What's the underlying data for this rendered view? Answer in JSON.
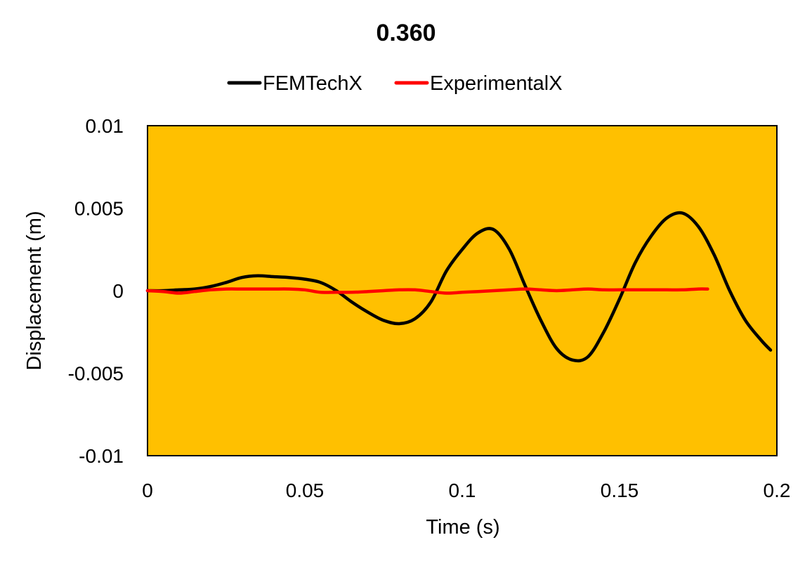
{
  "chart_data": {
    "type": "line",
    "title": "0.360",
    "xlabel": "Time (s)",
    "ylabel": "Displacement (m)",
    "xlim": [
      0,
      0.2
    ],
    "ylim": [
      -0.01,
      0.01
    ],
    "x_ticks": [
      "0",
      "0.05",
      "0.1",
      "0.15",
      "0.2"
    ],
    "y_ticks": [
      "0.01",
      "0.005",
      "0",
      "-0.005",
      "-0.01"
    ],
    "x_tick_values": [
      0,
      0.05,
      0.1,
      0.15,
      0.2
    ],
    "y_tick_values": [
      0.01,
      0.005,
      0,
      -0.005,
      -0.01
    ],
    "grid": false,
    "legend_position": "top",
    "plot_background": "#FFC000",
    "series": [
      {
        "name": "FEMTechX",
        "color": "#000000",
        "points": [
          [
            0,
            0
          ],
          [
            0.005,
            0
          ],
          [
            0.01,
            5e-05
          ],
          [
            0.015,
            0.0001
          ],
          [
            0.02,
            0.00025
          ],
          [
            0.025,
            0.0005
          ],
          [
            0.03,
            0.0008
          ],
          [
            0.035,
            0.0009
          ],
          [
            0.04,
            0.00085
          ],
          [
            0.045,
            0.0008
          ],
          [
            0.05,
            0.0007
          ],
          [
            0.055,
            0.0005
          ],
          [
            0.06,
            0
          ],
          [
            0.065,
            -0.0007
          ],
          [
            0.07,
            -0.0013
          ],
          [
            0.075,
            -0.0018
          ],
          [
            0.08,
            -0.002
          ],
          [
            0.085,
            -0.0017
          ],
          [
            0.09,
            -0.0007
          ],
          [
            0.095,
            0.0012
          ],
          [
            0.1,
            0.0025
          ],
          [
            0.105,
            0.0035
          ],
          [
            0.11,
            0.0037
          ],
          [
            0.115,
            0.0025
          ],
          [
            0.12,
            0.0003
          ],
          [
            0.125,
            -0.0018
          ],
          [
            0.13,
            -0.0035
          ],
          [
            0.135,
            -0.0042
          ],
          [
            0.14,
            -0.004
          ],
          [
            0.145,
            -0.0025
          ],
          [
            0.15,
            -0.0005
          ],
          [
            0.155,
            0.0017
          ],
          [
            0.16,
            0.0033
          ],
          [
            0.165,
            0.0044
          ],
          [
            0.17,
            0.0047
          ],
          [
            0.175,
            0.0039
          ],
          [
            0.18,
            0.0022
          ],
          [
            0.185,
            0
          ],
          [
            0.19,
            -0.0018
          ],
          [
            0.195,
            -0.003
          ],
          [
            0.198,
            -0.0036
          ]
        ]
      },
      {
        "name": "ExperimentalX",
        "color": "#FF0000",
        "points": [
          [
            0,
            0
          ],
          [
            0.005,
            -5e-05
          ],
          [
            0.01,
            -0.00015
          ],
          [
            0.015,
            -5e-05
          ],
          [
            0.02,
            5e-05
          ],
          [
            0.025,
            0.0001
          ],
          [
            0.03,
            0.0001
          ],
          [
            0.035,
            0.0001
          ],
          [
            0.04,
            0.0001
          ],
          [
            0.045,
            0.0001
          ],
          [
            0.05,
            5e-05
          ],
          [
            0.055,
            -0.0001
          ],
          [
            0.06,
            -0.0001
          ],
          [
            0.065,
            -0.0001
          ],
          [
            0.07,
            -5e-05
          ],
          [
            0.075,
            0
          ],
          [
            0.08,
            5e-05
          ],
          [
            0.085,
            5e-05
          ],
          [
            0.09,
            -5e-05
          ],
          [
            0.095,
            -0.00015
          ],
          [
            0.1,
            -0.0001
          ],
          [
            0.105,
            -5e-05
          ],
          [
            0.11,
            0
          ],
          [
            0.115,
            5e-05
          ],
          [
            0.12,
            0.0001
          ],
          [
            0.125,
            5e-05
          ],
          [
            0.13,
            0
          ],
          [
            0.135,
            5e-05
          ],
          [
            0.14,
            0.0001
          ],
          [
            0.145,
            5e-05
          ],
          [
            0.15,
            5e-05
          ],
          [
            0.155,
            5e-05
          ],
          [
            0.16,
            5e-05
          ],
          [
            0.165,
            5e-05
          ],
          [
            0.17,
            5e-05
          ],
          [
            0.175,
            0.0001
          ],
          [
            0.178,
            0.0001
          ]
        ]
      }
    ]
  }
}
